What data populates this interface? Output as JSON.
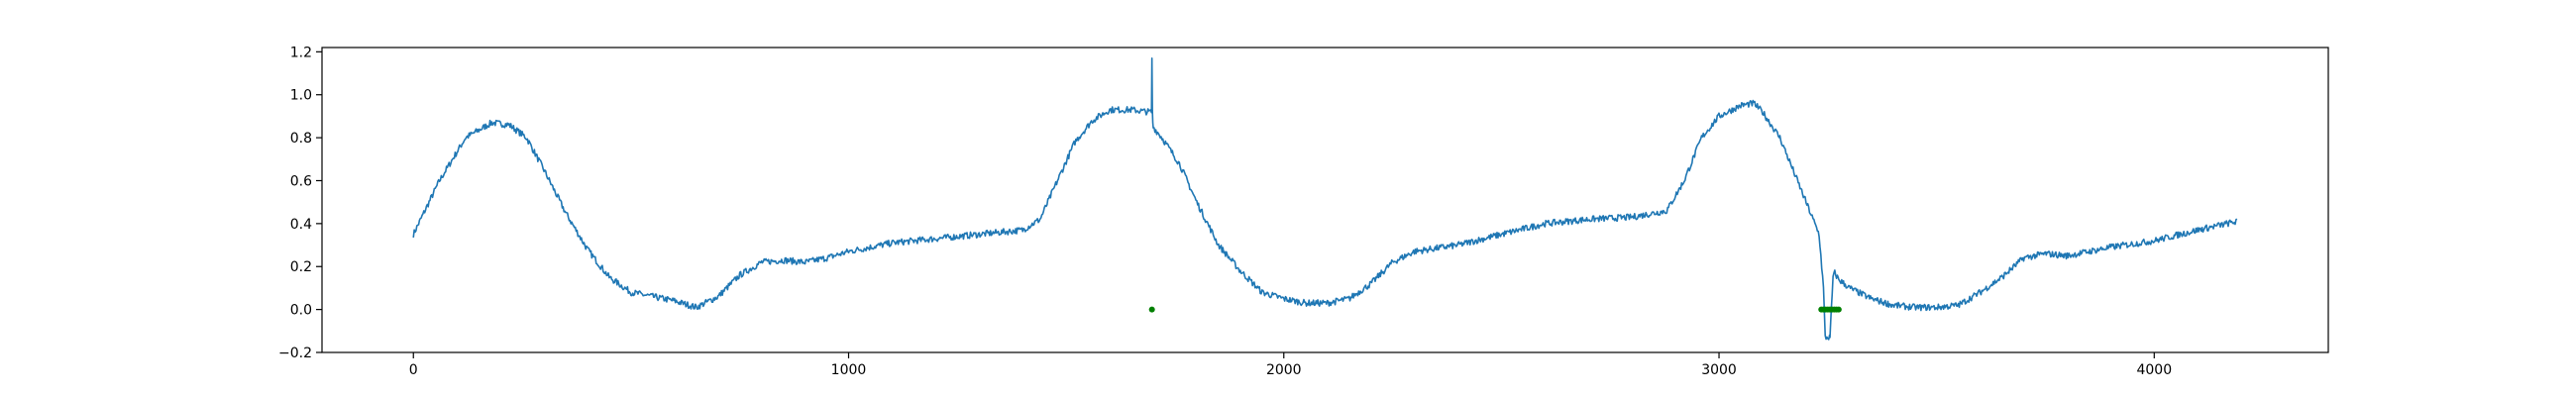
{
  "chart_data": {
    "type": "line",
    "title": "",
    "xlabel": "",
    "ylabel": "",
    "xlim": [
      -210,
      4400
    ],
    "ylim": [
      -0.2,
      1.22
    ],
    "grid": false,
    "x_ticks": [
      0,
      1000,
      2000,
      3000,
      4000
    ],
    "x_tick_labels": [
      "0",
      "1000",
      "2000",
      "3000",
      "4000"
    ],
    "y_ticks": [
      -0.2,
      0.0,
      0.2,
      0.4,
      0.6,
      0.8,
      1.0,
      1.2
    ],
    "y_tick_labels": [
      "−0.2",
      "0.0",
      "0.2",
      "0.4",
      "0.6",
      "0.8",
      "1.0",
      "1.2"
    ],
    "series": [
      {
        "color": "#1f77b4",
        "noise_amplitude": 0.03,
        "x": [
          0,
          60,
          120,
          180,
          220,
          260,
          300,
          350,
          400,
          450,
          500,
          550,
          600,
          650,
          700,
          750,
          800,
          850,
          900,
          950,
          1000,
          1050,
          1100,
          1200,
          1300,
          1400,
          1440,
          1480,
          1520,
          1560,
          1600,
          1650,
          1690,
          1696,
          1697,
          1698,
          1699,
          1700,
          1720,
          1760,
          1800,
          1850,
          1900,
          1950,
          2000,
          2050,
          2100,
          2150,
          2200,
          2250,
          2300,
          2400,
          2500,
          2600,
          2700,
          2800,
          2880,
          2920,
          2960,
          3000,
          3050,
          3080,
          3100,
          3140,
          3180,
          3210,
          3230,
          3240,
          3244,
          3248,
          3255,
          3262,
          3266,
          3275,
          3300,
          3350,
          3400,
          3450,
          3500,
          3550,
          3600,
          3650,
          3700,
          3750,
          3800,
          3900,
          4000,
          4100,
          4190
        ],
        "y": [
          0.35,
          0.6,
          0.8,
          0.87,
          0.86,
          0.8,
          0.65,
          0.45,
          0.28,
          0.15,
          0.08,
          0.06,
          0.04,
          0.01,
          0.06,
          0.16,
          0.22,
          0.23,
          0.22,
          0.24,
          0.27,
          0.29,
          0.31,
          0.33,
          0.35,
          0.37,
          0.42,
          0.6,
          0.78,
          0.88,
          0.93,
          0.93,
          0.92,
          0.92,
          1.17,
          0.92,
          0.87,
          0.85,
          0.8,
          0.68,
          0.5,
          0.3,
          0.18,
          0.08,
          0.05,
          0.03,
          0.03,
          0.05,
          0.12,
          0.22,
          0.27,
          0.3,
          0.35,
          0.4,
          0.42,
          0.43,
          0.46,
          0.6,
          0.8,
          0.9,
          0.95,
          0.96,
          0.92,
          0.8,
          0.6,
          0.45,
          0.35,
          0.1,
          -0.13,
          -0.13,
          -0.13,
          0.15,
          0.17,
          0.14,
          0.1,
          0.05,
          0.02,
          0.01,
          0.01,
          0.02,
          0.08,
          0.15,
          0.24,
          0.26,
          0.25,
          0.29,
          0.32,
          0.37,
          0.41
        ]
      },
      {
        "color": "#008000",
        "marker": "dot",
        "x": [
          1697,
          3235,
          3240,
          3245,
          3250,
          3255,
          3260,
          3265,
          3270,
          3275
        ],
        "y": [
          0.0,
          0.0,
          0.0,
          0.0,
          0.0,
          0.0,
          0.0,
          0.0,
          0.0,
          0.0
        ]
      }
    ]
  }
}
